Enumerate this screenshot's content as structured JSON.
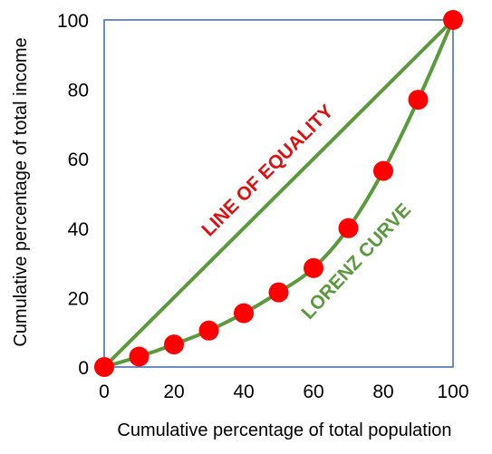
{
  "chart_data": {
    "type": "line",
    "xlabel": "Cumulative percentage of total population",
    "ylabel": "Cumulative percentage of total income",
    "xlim": [
      0,
      100
    ],
    "ylim": [
      0,
      100
    ],
    "x_ticks": [
      "0",
      "20",
      "40",
      "60",
      "80",
      "100"
    ],
    "y_ticks": [
      "0",
      "20",
      "40",
      "60",
      "80",
      "100"
    ],
    "grid": false,
    "series": [
      {
        "name": "LINE OF EQUALITY",
        "x": [
          0,
          100
        ],
        "y": [
          0,
          100
        ],
        "color": "#5a9a3c"
      },
      {
        "name": "LORENZ CURVE",
        "x": [
          0,
          10,
          20,
          30,
          40,
          50,
          60,
          70,
          80,
          90,
          100
        ],
        "y": [
          0,
          3,
          6.5,
          10.5,
          15.5,
          21.5,
          28.5,
          40,
          56.5,
          77,
          100
        ],
        "color": "#5a9a3c",
        "marker_color": "#ff0000"
      }
    ],
    "annotations": [
      {
        "text": "LINE OF EQUALITY",
        "color": "#e01010"
      },
      {
        "text": "LORENZ CURVE",
        "color": "#5a9a3c"
      }
    ],
    "frame_color": "#4a6fb5"
  }
}
